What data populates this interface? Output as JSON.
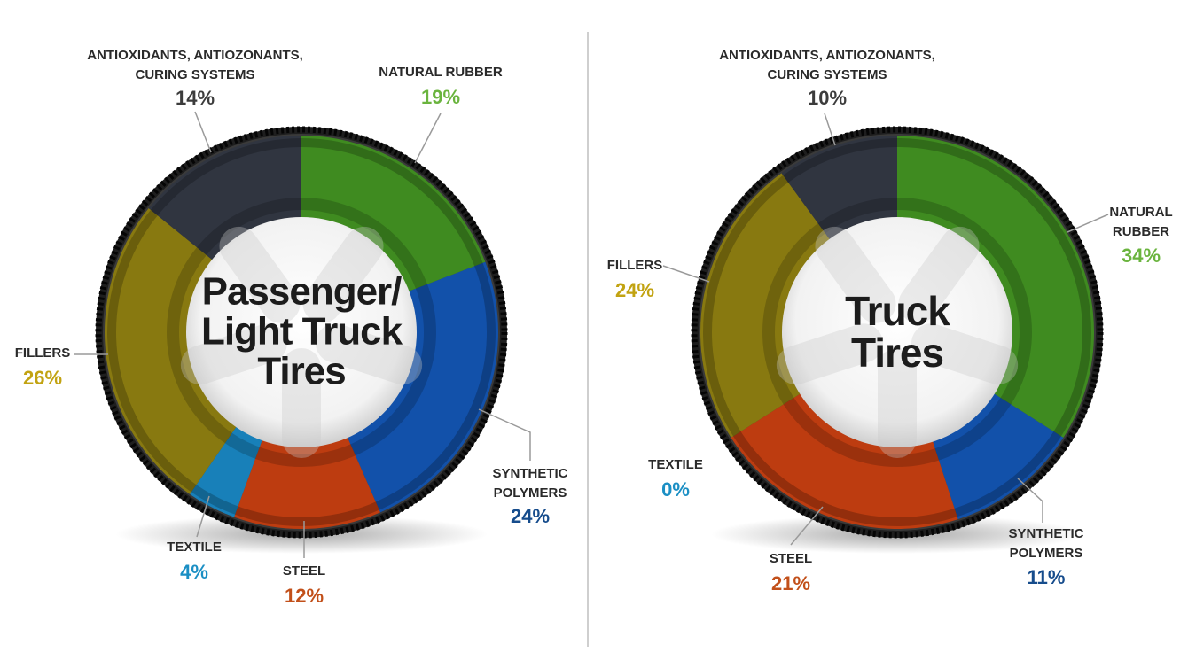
{
  "chart_data": [
    {
      "type": "pie",
      "title": "Passenger/ Light Truck Tires",
      "categories": [
        "NATURAL RUBBER",
        "SYNTHETIC POLYMERS",
        "STEEL",
        "TEXTILE",
        "FILLERS",
        "ANTIOXIDANTS, ANTIOZONANTS, CURING SYSTEMS"
      ],
      "values": [
        19,
        24,
        12,
        4,
        26,
        14
      ],
      "value_labels": [
        "19%",
        "24%",
        "12%",
        "4%",
        "26%",
        "14%"
      ],
      "colors": [
        "#3f8f1f",
        "#1052b0",
        "#c43c0e",
        "#1684c0",
        "#8c7c0e",
        "#2f3540"
      ],
      "label_colors": [
        "#6ab43e",
        "#164c8c",
        "#c2501a",
        "#1b8fc4",
        "#c2a312",
        "#3c3c3c"
      ]
    },
    {
      "type": "pie",
      "title": "Truck Tires",
      "categories": [
        "NATURAL RUBBER",
        "SYNTHETIC POLYMERS",
        "STEEL",
        "TEXTILE",
        "FILLERS",
        "ANTIOXIDANTS, ANTIOZONANTS, CURING SYSTEMS"
      ],
      "values": [
        34,
        11,
        21,
        0,
        24,
        10
      ],
      "value_labels": [
        "34%",
        "11%",
        "21%",
        "0%",
        "24%",
        "10%"
      ],
      "colors": [
        "#3f8f1f",
        "#1052b0",
        "#c43c0e",
        "#1684c0",
        "#8c7c0e",
        "#2f3540"
      ],
      "label_colors": [
        "#6ab43e",
        "#164c8c",
        "#c2501a",
        "#1b8fc4",
        "#c2a312",
        "#3c3c3c"
      ]
    }
  ]
}
